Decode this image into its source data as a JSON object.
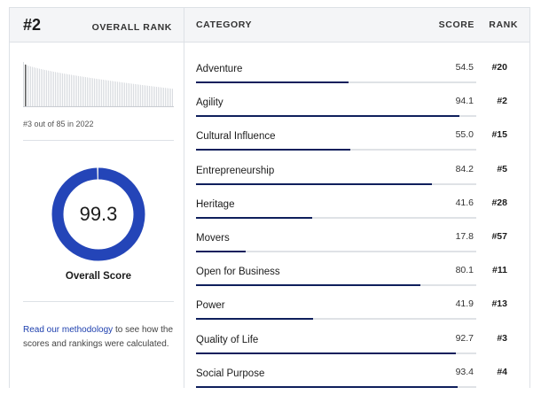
{
  "overall": {
    "rank": "#2",
    "rank_header": "OVERALL RANK",
    "prev_rank_note": "#3 out of 85 in 2022",
    "score": "99.3",
    "score_value": 99.3,
    "score_label": "Overall Score",
    "methodology_link": "Read our methodology",
    "methodology_text": " to see how the scores and rankings were calculated."
  },
  "table": {
    "header_category": "CATEGORY",
    "header_score": "SCORE",
    "header_rank": "RANK",
    "rows": [
      {
        "category": "Adventure",
        "score": "54.5",
        "rank": "#20",
        "value": 54.5
      },
      {
        "category": "Agility",
        "score": "94.1",
        "rank": "#2",
        "value": 94.1
      },
      {
        "category": "Cultural Influence",
        "score": "55.0",
        "rank": "#15",
        "value": 55.0
      },
      {
        "category": "Entrepreneurship",
        "score": "84.2",
        "rank": "#5",
        "value": 84.2
      },
      {
        "category": "Heritage",
        "score": "41.6",
        "rank": "#28",
        "value": 41.6
      },
      {
        "category": "Movers",
        "score": "17.8",
        "rank": "#57",
        "value": 17.8
      },
      {
        "category": "Open for Business",
        "score": "80.1",
        "rank": "#11",
        "value": 80.1
      },
      {
        "category": "Power",
        "score": "41.9",
        "rank": "#13",
        "value": 41.9
      },
      {
        "category": "Quality of Life",
        "score": "92.7",
        "rank": "#3",
        "value": 92.7
      },
      {
        "category": "Social Purpose",
        "score": "93.4",
        "rank": "#4",
        "value": 93.4
      }
    ]
  },
  "colors": {
    "accent": "#2445b8",
    "bar": "#0f1f5c",
    "track": "#dfe2e6"
  }
}
